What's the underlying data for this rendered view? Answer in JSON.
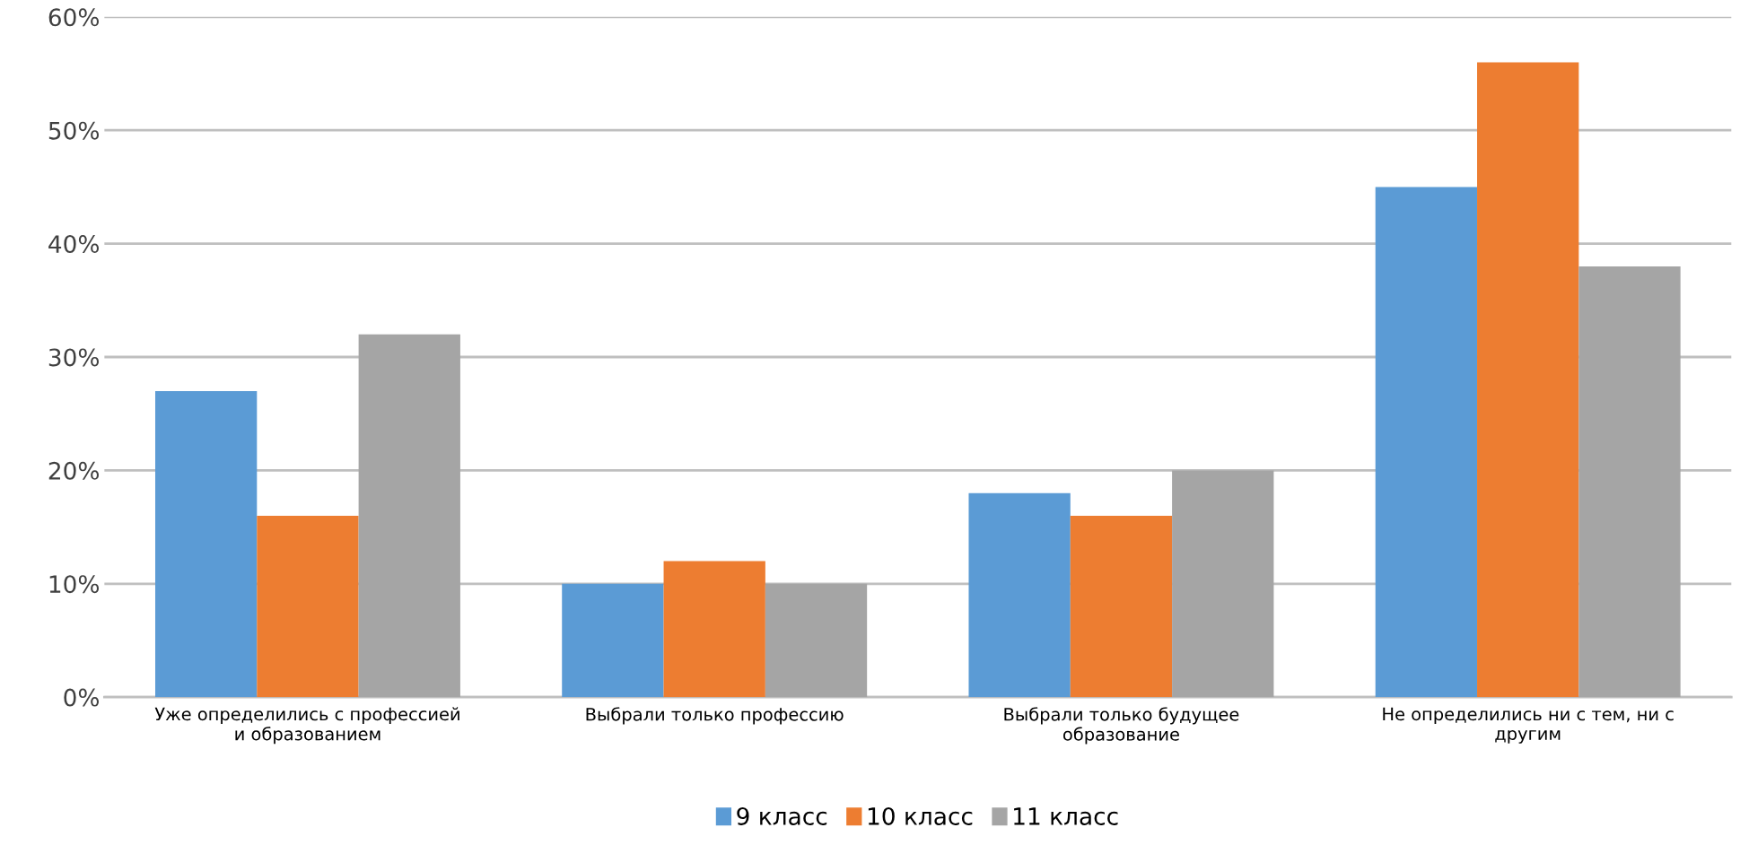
{
  "chart_data": {
    "type": "bar",
    "categories": [
      "Уже определились с профессией\nи образованием",
      "Выбрали только профессию",
      "Выбрали только будущее\nобразование",
      "Не определились ни с тем, ни с\nдругим"
    ],
    "series": [
      {
        "name": "9 класс",
        "color": "#5b9bd5",
        "values": [
          27,
          10,
          18,
          45
        ]
      },
      {
        "name": "10 класс",
        "color": "#ed7d31",
        "values": [
          16,
          12,
          16,
          56
        ]
      },
      {
        "name": "11 класс",
        "color": "#a5a5a5",
        "values": [
          32,
          10,
          20,
          38
        ]
      }
    ],
    "ylim": [
      0,
      60
    ],
    "yticks": [
      {
        "value": 0,
        "label": "0%"
      },
      {
        "value": 10,
        "label": "10%"
      },
      {
        "value": 20,
        "label": "20%"
      },
      {
        "value": 30,
        "label": "30%"
      },
      {
        "value": 40,
        "label": "40%"
      },
      {
        "value": 50,
        "label": "50%"
      },
      {
        "value": 60,
        "label": "60%"
      }
    ],
    "grid": "y",
    "legend": "bottom"
  }
}
